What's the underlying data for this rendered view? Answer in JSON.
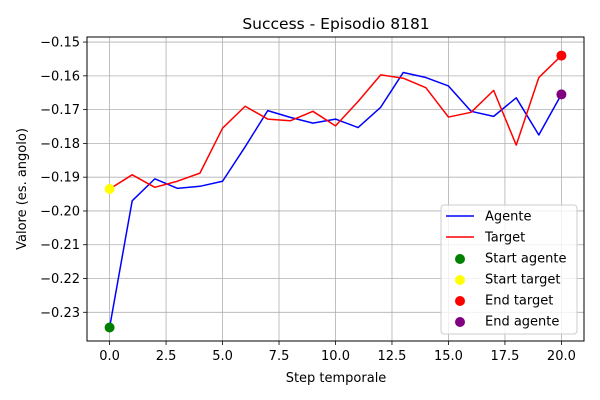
{
  "chart_data": {
    "type": "line",
    "title": "Success - Episodio 8181",
    "xlabel": "Step temporale",
    "ylabel": "Valore (es. angolo)",
    "xlim": [
      -1,
      21
    ],
    "ylim": [
      -0.2385,
      -0.1485
    ],
    "xticks": [
      0,
      2.5,
      5,
      7.5,
      10,
      12.5,
      15,
      17.5,
      20
    ],
    "xtick_labels": [
      "0.0",
      "2.5",
      "5.0",
      "7.5",
      "10.0",
      "12.5",
      "15.0",
      "17.5",
      "20.0"
    ],
    "yticks": [
      -0.23,
      -0.22,
      -0.21,
      -0.2,
      -0.19,
      -0.18,
      -0.17,
      -0.16,
      -0.15
    ],
    "ytick_labels": [
      "−0.23",
      "−0.22",
      "−0.21",
      "−0.20",
      "−0.19",
      "−0.18",
      "−0.17",
      "−0.16",
      "−0.15"
    ],
    "grid": true,
    "legend_position": "lower-right",
    "x": [
      0,
      1,
      2,
      3,
      4,
      5,
      6,
      7,
      8,
      9,
      10,
      11,
      12,
      13,
      14,
      15,
      16,
      17,
      18,
      19,
      20
    ],
    "series": [
      {
        "name": "Agente",
        "color": "#0000ff",
        "values": [
          -0.2345,
          -0.197,
          -0.1905,
          -0.1933,
          -0.1927,
          -0.1912,
          -0.181,
          -0.1703,
          -0.1723,
          -0.174,
          -0.1728,
          -0.1753,
          -0.1693,
          -0.159,
          -0.1605,
          -0.163,
          -0.1705,
          -0.172,
          -0.1665,
          -0.1775,
          -0.1655
        ]
      },
      {
        "name": "Target",
        "color": "#ff0000",
        "values": [
          -0.1935,
          -0.1893,
          -0.193,
          -0.1912,
          -0.1888,
          -0.1755,
          -0.169,
          -0.1728,
          -0.1733,
          -0.1705,
          -0.1748,
          -0.1676,
          -0.1597,
          -0.1607,
          -0.1635,
          -0.1722,
          -0.1708,
          -0.1643,
          -0.1805,
          -0.1605,
          -0.154
        ]
      }
    ],
    "markers": [
      {
        "name": "Start agente",
        "color": "#008000",
        "x": 0,
        "y": -0.2345
      },
      {
        "name": "Start target",
        "color": "#ffff00",
        "x": 0,
        "y": -0.1935
      },
      {
        "name": "End target",
        "color": "#ff0000",
        "x": 20,
        "y": -0.154
      },
      {
        "name": "End agente",
        "color": "#800080",
        "x": 20,
        "y": -0.1655
      }
    ]
  }
}
